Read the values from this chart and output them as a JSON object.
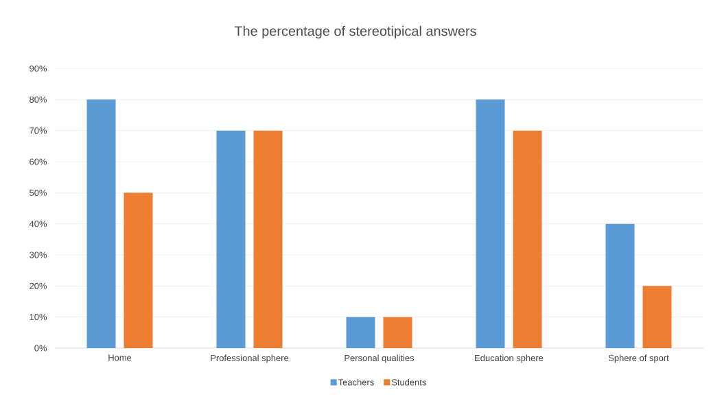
{
  "chart_data": {
    "type": "bar",
    "title": "The percentage of stereotipical answers",
    "categories": [
      "Home",
      "Professional sphere",
      "Personal qualities",
      "Education sphere",
      "Sphere of sport"
    ],
    "series": [
      {
        "name": "Teachers",
        "color": "#5b9bd5",
        "values": [
          80,
          70,
          10,
          80,
          40
        ]
      },
      {
        "name": "Students",
        "color": "#ed7d31",
        "values": [
          50,
          70,
          10,
          70,
          20
        ]
      }
    ],
    "ylim": [
      0,
      90
    ],
    "yticks": [
      {
        "value": 0,
        "label": "0%"
      },
      {
        "value": 10,
        "label": "10%"
      },
      {
        "value": 20,
        "label": "20%"
      },
      {
        "value": 30,
        "label": "30%"
      },
      {
        "value": 40,
        "label": "40%"
      },
      {
        "value": 50,
        "label": "50%"
      },
      {
        "value": 60,
        "label": "60%"
      },
      {
        "value": 70,
        "label": "70%"
      },
      {
        "value": 80,
        "label": "80%"
      },
      {
        "value": 90,
        "label": "90%"
      }
    ],
    "grid": "y",
    "legend": "bottom"
  }
}
